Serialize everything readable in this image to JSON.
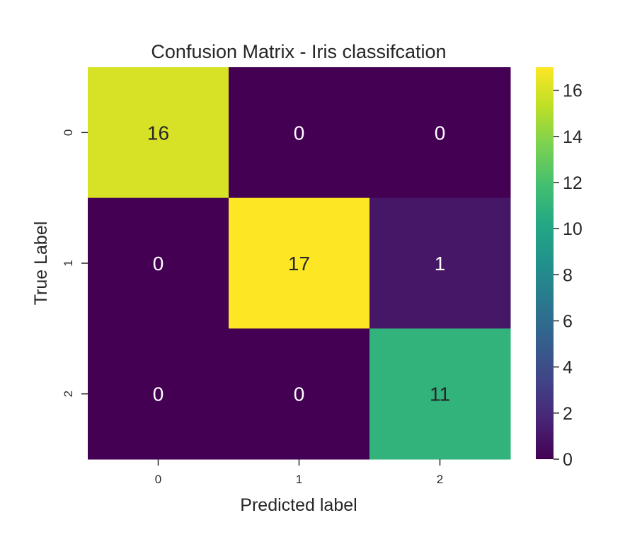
{
  "chart_data": {
    "type": "heatmap",
    "title": "Confusion Matrix - Iris classifcation",
    "xlabel": "Predicted label",
    "ylabel": "True Label",
    "x_categories": [
      "0",
      "1",
      "2"
    ],
    "y_categories": [
      "0",
      "1",
      "2"
    ],
    "values": [
      [
        16,
        0,
        0
      ],
      [
        0,
        17,
        1
      ],
      [
        0,
        0,
        11
      ]
    ],
    "colormap": "viridis",
    "color_range": [
      0,
      17
    ],
    "colorbar_ticks": [
      "0",
      "2",
      "4",
      "6",
      "8",
      "10",
      "12",
      "14",
      "16"
    ],
    "annotations": true,
    "grid": false
  }
}
